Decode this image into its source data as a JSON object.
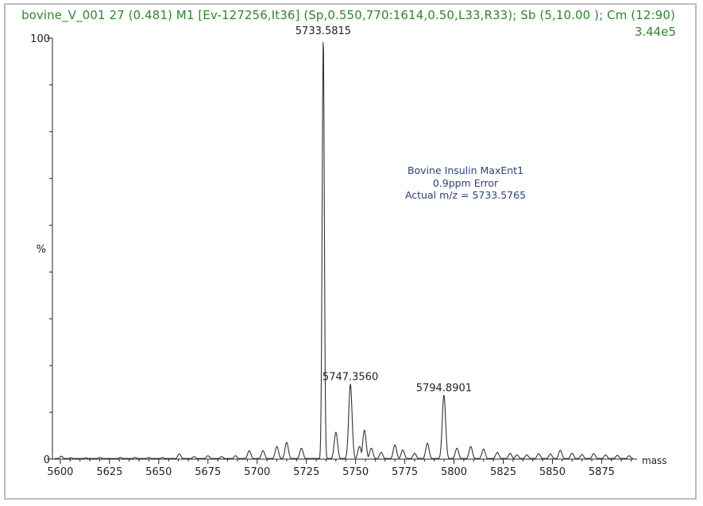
{
  "header": {
    "title": "bovine_V_001  27 (0.481) M1 [Ev-127256,It36] (Sp,0.550,770:1614,0.50,L33,R33); Sb (5,10.00 ); Cm (12:90)",
    "max_intensity": "3.44e5"
  },
  "annotation": {
    "line1": "Bovine Insulin MaxEnt1",
    "line2": "0.9ppm Error",
    "line3": "Actual m/z = 5733.5765"
  },
  "colors": {
    "header": "#2a8a2a",
    "annotation": "#2a3e8a",
    "trace": "#333333",
    "axis": "#222222"
  },
  "chart_data": {
    "type": "line",
    "xlabel": "mass",
    "ylabel": "%",
    "xlim": [
      5596,
      5893
    ],
    "ylim": [
      0,
      100
    ],
    "xticks": [
      5600,
      5625,
      5650,
      5675,
      5700,
      5725,
      5750,
      5775,
      5800,
      5825,
      5850,
      5875
    ],
    "yticks": [
      0,
      100
    ],
    "ytick_labels": [
      "0",
      "100"
    ],
    "peak_labels": [
      {
        "text": "5733.5815",
        "x": 5733.58,
        "y": 100
      },
      {
        "text": "5747.3560",
        "x": 5747.36,
        "y": 17.8
      },
      {
        "text": "5794.8901",
        "x": 5794.89,
        "y": 15.2
      }
    ],
    "peaks": [
      {
        "x": 5600.5,
        "y": 0.7
      },
      {
        "x": 5605.5,
        "y": 0.3
      },
      {
        "x": 5613,
        "y": 0.3
      },
      {
        "x": 5620,
        "y": 0.4
      },
      {
        "x": 5630.5,
        "y": 0.4
      },
      {
        "x": 5638,
        "y": 0.4
      },
      {
        "x": 5645,
        "y": 0.4
      },
      {
        "x": 5652,
        "y": 0.4
      },
      {
        "x": 5660.5,
        "y": 1.2
      },
      {
        "x": 5668,
        "y": 0.6
      },
      {
        "x": 5675,
        "y": 0.8
      },
      {
        "x": 5682,
        "y": 0.6
      },
      {
        "x": 5689,
        "y": 0.8
      },
      {
        "x": 5696,
        "y": 2.0
      },
      {
        "x": 5703,
        "y": 2.0
      },
      {
        "x": 5710,
        "y": 3.0
      },
      {
        "x": 5715,
        "y": 4.0
      },
      {
        "x": 5722.5,
        "y": 2.6
      },
      {
        "x": 5733.58,
        "y": 100
      },
      {
        "x": 5740,
        "y": 6.4
      },
      {
        "x": 5747.36,
        "y": 17.8
      },
      {
        "x": 5752,
        "y": 3.0
      },
      {
        "x": 5754.5,
        "y": 6.9
      },
      {
        "x": 5758,
        "y": 2.6
      },
      {
        "x": 5763,
        "y": 1.6
      },
      {
        "x": 5770,
        "y": 3.4
      },
      {
        "x": 5774,
        "y": 2.2
      },
      {
        "x": 5780,
        "y": 1.4
      },
      {
        "x": 5786.5,
        "y": 3.8
      },
      {
        "x": 5794.89,
        "y": 15.2
      },
      {
        "x": 5801.5,
        "y": 2.6
      },
      {
        "x": 5808.5,
        "y": 3.0
      },
      {
        "x": 5815,
        "y": 2.4
      },
      {
        "x": 5822,
        "y": 1.6
      },
      {
        "x": 5828.5,
        "y": 1.4
      },
      {
        "x": 5832,
        "y": 1.0
      },
      {
        "x": 5837,
        "y": 1.0
      },
      {
        "x": 5843,
        "y": 1.3
      },
      {
        "x": 5849,
        "y": 1.2
      },
      {
        "x": 5854,
        "y": 2.1
      },
      {
        "x": 5860,
        "y": 1.4
      },
      {
        "x": 5865,
        "y": 1.1
      },
      {
        "x": 5871,
        "y": 1.3
      },
      {
        "x": 5877,
        "y": 1.0
      },
      {
        "x": 5883,
        "y": 0.9
      },
      {
        "x": 5889,
        "y": 0.8
      }
    ]
  }
}
